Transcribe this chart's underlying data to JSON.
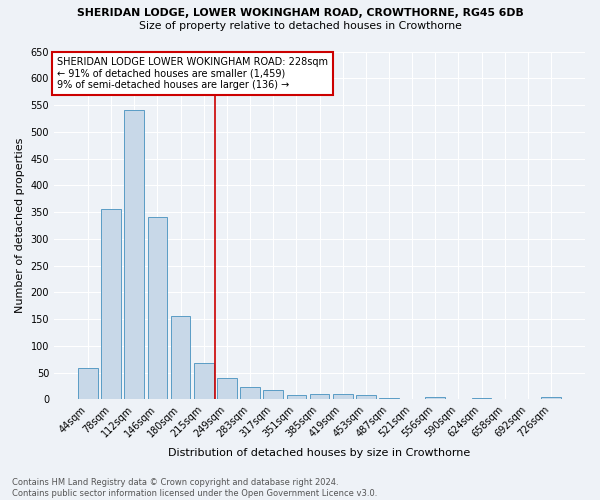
{
  "title1": "SHERIDAN LODGE, LOWER WOKINGHAM ROAD, CROWTHORNE, RG45 6DB",
  "title2": "Size of property relative to detached houses in Crowthorne",
  "xlabel": "Distribution of detached houses by size in Crowthorne",
  "ylabel": "Number of detached properties",
  "footer1": "Contains HM Land Registry data © Crown copyright and database right 2024.",
  "footer2": "Contains public sector information licensed under the Open Government Licence v3.0.",
  "bar_labels": [
    "44sqm",
    "78sqm",
    "112sqm",
    "146sqm",
    "180sqm",
    "215sqm",
    "249sqm",
    "283sqm",
    "317sqm",
    "351sqm",
    "385sqm",
    "419sqm",
    "453sqm",
    "487sqm",
    "521sqm",
    "556sqm",
    "590sqm",
    "624sqm",
    "658sqm",
    "692sqm",
    "726sqm"
  ],
  "bar_values": [
    58,
    356,
    540,
    340,
    155,
    68,
    40,
    23,
    18,
    8,
    10,
    10,
    8,
    3,
    0,
    5,
    0,
    3,
    0,
    0,
    5
  ],
  "bar_color": "#c8d8e8",
  "bar_edge_color": "#5a9cc5",
  "vline_x": 6.0,
  "vline_color": "#cc0000",
  "annotation_text": "SHERIDAN LODGE LOWER WOKINGHAM ROAD: 228sqm\n← 91% of detached houses are smaller (1,459)\n9% of semi-detached houses are larger (136) →",
  "annotation_box_color": "#ffffff",
  "annotation_box_edge": "#cc0000",
  "ylim": [
    0,
    650
  ],
  "yticks": [
    0,
    50,
    100,
    150,
    200,
    250,
    300,
    350,
    400,
    450,
    500,
    550,
    600,
    650
  ],
  "bg_color": "#eef2f7",
  "plot_bg_color": "#eef2f7",
  "title1_fontsize": 7.8,
  "title2_fontsize": 7.8,
  "ylabel_fontsize": 8.0,
  "xlabel_fontsize": 8.0,
  "tick_fontsize": 7.0,
  "annot_fontsize": 7.0,
  "footer_fontsize": 6.0
}
